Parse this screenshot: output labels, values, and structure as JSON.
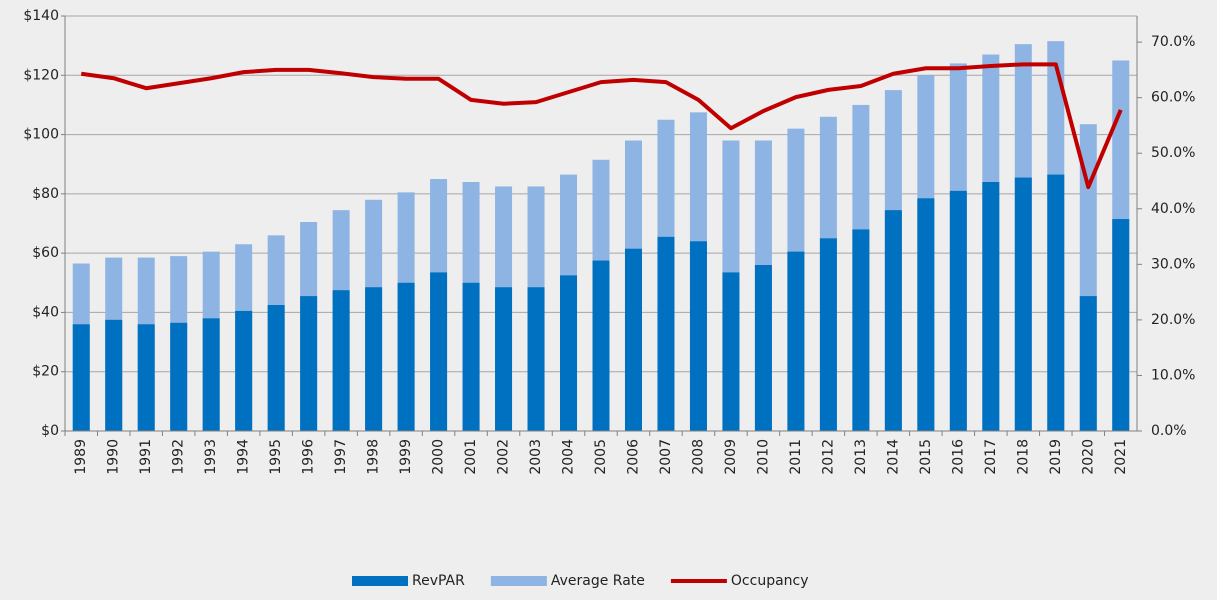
{
  "chart_data": {
    "type": "bar",
    "categories": [
      "1989",
      "1990",
      "1991",
      "1992",
      "1993",
      "1994",
      "1995",
      "1996",
      "1997",
      "1998",
      "1999",
      "2000",
      "2001",
      "2002",
      "2003",
      "2004",
      "2005",
      "2006",
      "2007",
      "2008",
      "2009",
      "2010",
      "2011",
      "2012",
      "2013",
      "2014",
      "2015",
      "2016",
      "2017",
      "2018",
      "2019",
      "2020",
      "2021"
    ],
    "series": [
      {
        "name": "RevPAR",
        "color": "#0070c0",
        "type": "bar",
        "values": [
          36,
          37.5,
          36,
          36.5,
          38,
          40.5,
          42.5,
          45.5,
          47.5,
          48.5,
          50,
          53.5,
          50,
          48.5,
          48.5,
          52.5,
          57.5,
          61.5,
          65.5,
          64,
          53.5,
          56,
          60.5,
          65,
          68,
          74.5,
          78.5,
          81,
          84,
          85.5,
          86.5,
          45.5,
          71.5
        ]
      },
      {
        "name": "Average Rate",
        "color": "#8db4e2",
        "type": "bar",
        "values": [
          56.5,
          58.5,
          58.5,
          59,
          60.5,
          63,
          66,
          70.5,
          74.5,
          78,
          80.5,
          85,
          84,
          82.5,
          82.5,
          86.5,
          91.5,
          98,
          105,
          107.5,
          98,
          98,
          102,
          106,
          110,
          115,
          120,
          124,
          127,
          130.5,
          131.5,
          103.5,
          125
        ]
      },
      {
        "name": "Occupancy",
        "color": "#c00000",
        "type": "line",
        "axis": "y2",
        "values": [
          64.3,
          63.5,
          61.7,
          62.6,
          63.5,
          64.6,
          65,
          65,
          64.4,
          63.7,
          63.4,
          63.4,
          59.6,
          58.9,
          59.2,
          61,
          62.8,
          63.2,
          62.8,
          59.6,
          54.5,
          57.6,
          60.1,
          61.4,
          62.1,
          64.3,
          65.3,
          65.3,
          65.7,
          66,
          66,
          43.9,
          57.8
        ]
      }
    ],
    "ylim": [
      0,
      140
    ],
    "yticks": [
      {
        "value": 0,
        "label": "$0"
      },
      {
        "value": 20,
        "label": "$20"
      },
      {
        "value": 40,
        "label": "$40"
      },
      {
        "value": 60,
        "label": "$60"
      },
      {
        "value": 80,
        "label": "$80"
      },
      {
        "value": 100,
        "label": "$100"
      },
      {
        "value": 120,
        "label": "$120"
      },
      {
        "value": 140,
        "label": "$140"
      }
    ],
    "y2lim": [
      0,
      74.7
    ],
    "y2ticks": [
      {
        "value": 0,
        "label": "0.0%"
      },
      {
        "value": 10,
        "label": "10.0%"
      },
      {
        "value": 20,
        "label": "20.0%"
      },
      {
        "value": 30,
        "label": "30.0%"
      },
      {
        "value": 40,
        "label": "40.0%"
      },
      {
        "value": 50,
        "label": "50.0%"
      },
      {
        "value": 60,
        "label": "60.0%"
      },
      {
        "value": 70,
        "label": "70.0%"
      }
    ],
    "grid": true,
    "legend": "bottom"
  }
}
